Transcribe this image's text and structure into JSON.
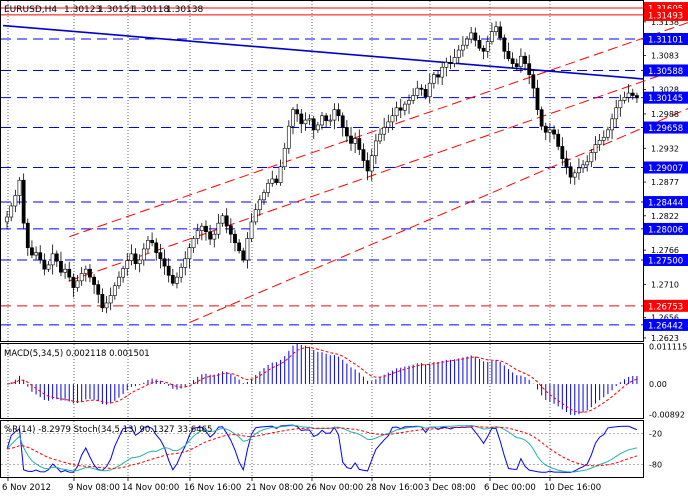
{
  "chart_data": {
    "type": "candlestick",
    "symbol_header": "EURUSD,H4",
    "ohlc_header": [
      "1.30123",
      "1.30151",
      "1.30118",
      "1.30138"
    ],
    "x_ticks": [
      "6 Nov 2012",
      "9 Nov 08:00",
      "14 Nov 00:00",
      "16 Nov 16:00",
      "21 Nov 08:00",
      "26 Nov 00:00",
      "28 Nov 16:00",
      "3 Dec 08:00",
      "6 Dec 00:00",
      "10 Dec 16:00"
    ],
    "price_axis": {
      "ylim": [
        1.2618,
        1.3172
      ],
      "ticks": [
        "1.2623",
        "1.2656",
        "1.2710",
        "1.2766",
        "1.2822",
        "1.2877",
        "1.2932",
        "1.2988",
        "1.3028",
        "1.3083",
        "1.3138"
      ]
    },
    "levels": [
      {
        "value": 1.31605,
        "label": "1.31605",
        "style": "solid",
        "color": "#ff0000"
      },
      {
        "value": 1.31493,
        "label": "1.31493",
        "style": "solid",
        "color": "#ff0000"
      },
      {
        "value": 1.31101,
        "label": "1.31101",
        "style": "dashed",
        "color": "#0000ff"
      },
      {
        "value": 1.30588,
        "label": "1.30588",
        "style": "dashed",
        "color": "#0000ff"
      },
      {
        "value": 1.30145,
        "label": "1.30145",
        "style": "dashed",
        "color": "#0000ff"
      },
      {
        "value": 1.29658,
        "label": "1.29658",
        "style": "dashed",
        "color": "#0000ff"
      },
      {
        "value": 1.29007,
        "label": "1.29007",
        "style": "dashed",
        "color": "#0000ff"
      },
      {
        "value": 1.28444,
        "label": "1.28444",
        "style": "dashed",
        "color": "#0000ff"
      },
      {
        "value": 1.28006,
        "label": "1.28006",
        "style": "dashed",
        "color": "#0000ff"
      },
      {
        "value": 1.275,
        "label": "1.27500",
        "style": "dashed",
        "color": "#0000ff"
      },
      {
        "value": 1.26753,
        "label": "1.26753",
        "style": "dashed",
        "color": "#ff0000"
      },
      {
        "value": 1.26442,
        "label": "1.26442",
        "style": "dashed",
        "color": "#0000ff"
      }
    ],
    "trend_line": {
      "from": [
        0,
        1.3132
      ],
      "to": [
        182,
        1.3045
      ],
      "color": "#0000cc"
    },
    "channel": {
      "color": "#ff0000",
      "lines": [
        {
          "from": [
            15,
            1.2788
          ],
          "to": [
            182,
            1.3178
          ]
        },
        {
          "from": [
            15,
            1.2716
          ],
          "to": [
            182,
            1.3108
          ]
        },
        {
          "from": [
            44,
            1.2648
          ],
          "to": [
            182,
            1.3048
          ]
        }
      ]
    },
    "closes": [
      1.282,
      1.2838,
      1.2855,
      1.288,
      1.281,
      1.277,
      1.2758,
      1.2762,
      1.275,
      1.2735,
      1.2742,
      1.276,
      1.2748,
      1.273,
      1.2735,
      1.2722,
      1.2705,
      1.2716,
      1.2728,
      1.2735,
      1.2722,
      1.271,
      1.2694,
      1.2672,
      1.268,
      1.2692,
      1.2708,
      1.2722,
      1.2736,
      1.2749,
      1.276,
      1.2744,
      1.275,
      1.2768,
      1.2782,
      1.2778,
      1.2762,
      1.2752,
      1.274,
      1.2725,
      1.2712,
      1.2722,
      1.2738,
      1.2752,
      1.277,
      1.2785,
      1.2798,
      1.2805,
      1.2796,
      1.2784,
      1.2792,
      1.281,
      1.2822,
      1.2806,
      1.2792,
      1.2778,
      1.2765,
      1.275,
      1.2785,
      1.2812,
      1.2832,
      1.2848,
      1.286,
      1.2875,
      1.2882,
      1.2876,
      1.2902,
      1.2932,
      1.2968,
      1.2995,
      1.2988,
      1.2972,
      1.2978,
      1.298,
      1.2962,
      1.297,
      1.2985,
      1.2977,
      1.2978,
      1.2995,
      1.2985,
      1.2966,
      1.2952,
      1.294,
      1.2948,
      1.293,
      1.2912,
      1.2895,
      1.292,
      1.2944,
      1.2955,
      1.2966,
      1.2975,
      1.2985,
      1.2998,
      1.2994,
      1.3004,
      1.301,
      1.3018,
      1.303,
      1.3028,
      1.3016,
      1.3038,
      1.3052,
      1.3048,
      1.3064,
      1.3072,
      1.307,
      1.308,
      1.3092,
      1.31,
      1.311,
      1.312,
      1.3108,
      1.3095,
      1.309,
      1.3106,
      1.3122,
      1.313,
      1.3112,
      1.309,
      1.3078,
      1.307,
      1.3065,
      1.3082,
      1.307,
      1.3052,
      1.303,
      1.2995,
      1.2968,
      1.2958,
      1.2962,
      1.2955,
      1.2935,
      1.2915,
      1.2902,
      1.2885,
      1.2892,
      1.29,
      1.2905,
      1.291,
      1.2925,
      1.2938,
      1.2945,
      1.295,
      1.2962,
      1.298,
      1.2998,
      1.301,
      1.3015,
      1.3022,
      1.3018,
      1.3014
    ],
    "macd": {
      "label": "MACD(5,34,5) 0.002118 0.001501",
      "ylim": [
        -0.01,
        0.0118
      ],
      "ticks": [
        "0.011115",
        "0.00",
        "-0.00892"
      ]
    },
    "stoch": {
      "label": "%R(14) -8.2979  Stoch(34,5,13) 90.1327 33.6465",
      "ylim": [
        -105,
        5
      ],
      "ticks": [
        "-20",
        "-80"
      ]
    }
  }
}
